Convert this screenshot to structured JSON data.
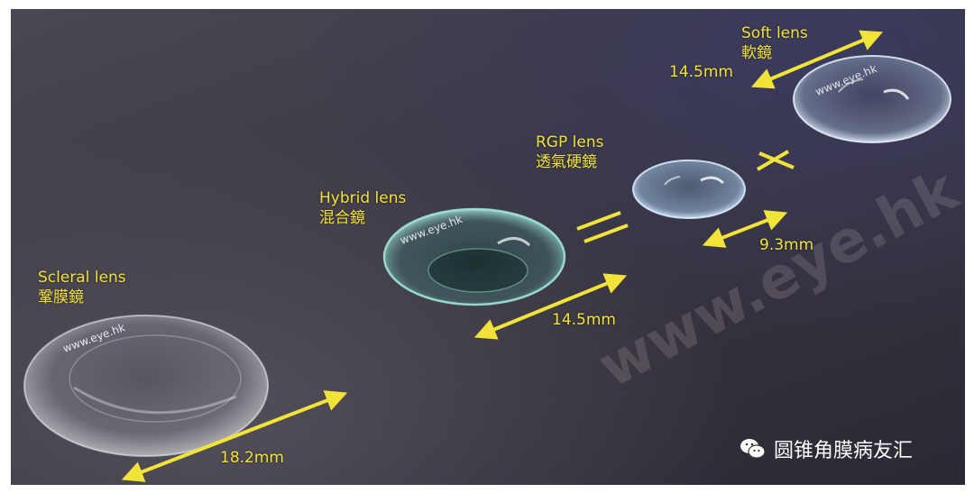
{
  "lenses": [
    {
      "name_en": "Scleral lens",
      "name_zh": "鞏膜鏡",
      "size": "18.2mm"
    },
    {
      "name_en": "Hybrid lens",
      "name_zh": "混合鏡",
      "size": "14.5mm"
    },
    {
      "name_en": "RGP lens",
      "name_zh": "透氣硬鏡",
      "size": "9.3mm"
    },
    {
      "name_en": "Soft lens",
      "name_zh": "軟鏡",
      "size": "14.5mm"
    }
  ],
  "watermark": "www.eye.hk",
  "symbols": {
    "equal": "=",
    "not_equal": "×"
  },
  "brand": {
    "text": "圆锥角膜病友汇",
    "icon": "wechat-icon"
  },
  "colors": {
    "label": "#f2e33a",
    "arrow": "#f2e33a"
  }
}
